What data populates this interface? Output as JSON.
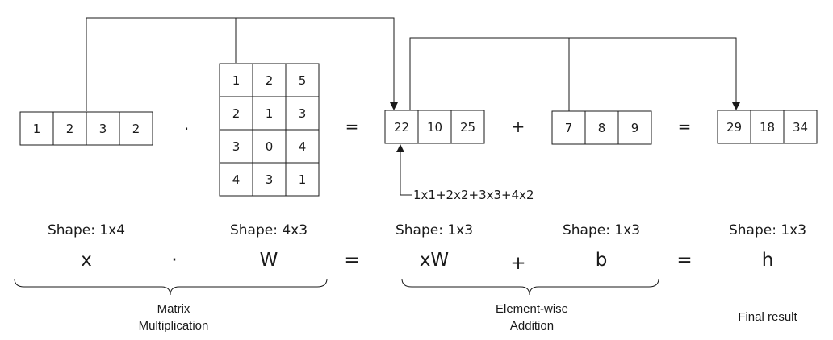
{
  "vectors": {
    "x": [
      "1",
      "2",
      "3",
      "2"
    ],
    "W": [
      [
        "1",
        "2",
        "5"
      ],
      [
        "2",
        "1",
        "3"
      ],
      [
        "3",
        "0",
        "4"
      ],
      [
        "4",
        "3",
        "1"
      ]
    ],
    "xW": [
      "22",
      "10",
      "25"
    ],
    "b": [
      "7",
      "8",
      "9"
    ],
    "h": [
      "29",
      "18",
      "34"
    ]
  },
  "operators": {
    "dot_top": "·",
    "equals_1": "=",
    "plus_top": "+",
    "equals_2": "="
  },
  "formula": "1x1+2x2+3x3+4x2",
  "shapes": {
    "x": "Shape: 1x4",
    "W": "Shape: 4x3",
    "xW": "Shape: 1x3",
    "b": "Shape: 1x3",
    "h": "Shape: 1x3"
  },
  "symbols": {
    "x": "x",
    "dot": "·",
    "W": "W",
    "eq1": "=",
    "xW": "xW",
    "plus": "+",
    "b": "b",
    "eq2": "=",
    "h": "h"
  },
  "groups": {
    "matmul": [
      "Matrix",
      "Multiplication"
    ],
    "addition": [
      "Element-wise",
      "Addition"
    ],
    "final": [
      "Final result"
    ]
  }
}
